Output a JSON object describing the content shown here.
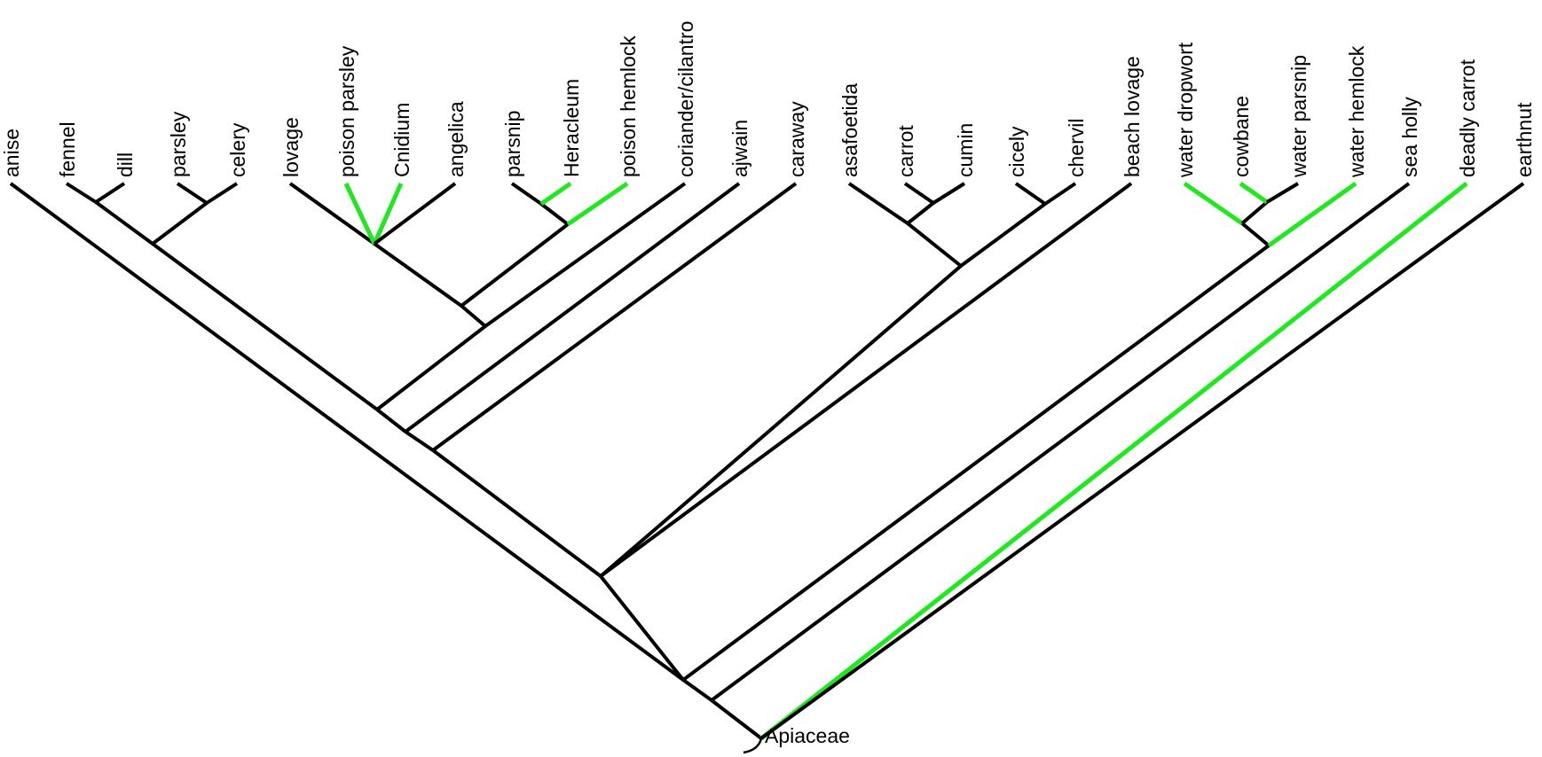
{
  "colors": {
    "branch": "#000000",
    "highlight": "#1ee81e"
  },
  "root_label": "Apiaceae",
  "tree": {
    "children": [
      {
        "children": [
          {
            "children": [
              {
                "label": "anise"
              },
              {
                "children": [
                  {
                    "children": [
                      {
                        "children": [
                          {
                            "children": [
                              {
                                "children": [
                                  {
                                    "children": [
                                      {
                                        "label": "fennel"
                                      },
                                      {
                                        "label": "dill"
                                      }
                                    ]
                                  },
                                  {
                                    "children": [
                                      {
                                        "label": "parsley"
                                      },
                                      {
                                        "label": "celery"
                                      }
                                    ]
                                  }
                                ]
                              },
                              {
                                "children": [
                                  {
                                    "children": [
                                      {
                                        "children": [
                                          {
                                            "label": "lovage"
                                          },
                                          {
                                            "label": "poison parsley",
                                            "highlight": true
                                          },
                                          {
                                            "label": "Cnidium",
                                            "highlight": true
                                          },
                                          {
                                            "label": "angelica"
                                          }
                                        ]
                                      },
                                      {
                                        "children": [
                                          {
                                            "children": [
                                              {
                                                "label": "parsnip"
                                              },
                                              {
                                                "label": "Heracleum",
                                                "highlight": true
                                              }
                                            ]
                                          },
                                          {
                                            "label": "poison hemlock",
                                            "highlight": true
                                          }
                                        ]
                                      }
                                    ]
                                  },
                                  {
                                    "label": "coriander/cilantro"
                                  }
                                ]
                              }
                            ]
                          },
                          {
                            "label": "ajwain"
                          }
                        ]
                      },
                      {
                        "label": "caraway"
                      }
                    ]
                  },
                  {
                    "children": [
                      {
                        "children": [
                          {
                            "label": "asafoetida"
                          },
                          {
                            "children": [
                              {
                                "label": "carrot"
                              },
                              {
                                "label": "cumin"
                              }
                            ]
                          }
                        ]
                      },
                      {
                        "children": [
                          {
                            "label": "cicely"
                          },
                          {
                            "label": "chervil"
                          }
                        ]
                      }
                    ]
                  },
                  {
                    "label": "beach lovage"
                  }
                ]
              },
              {
                "children": [
                  {
                    "children": [
                      {
                        "label": "water dropwort",
                        "highlight": true
                      },
                      {
                        "children": [
                          {
                            "label": "cowbane",
                            "highlight": true
                          },
                          {
                            "label": "water parsnip"
                          }
                        ]
                      }
                    ]
                  },
                  {
                    "label": "water hemlock",
                    "highlight": true
                  }
                ]
              }
            ]
          },
          {
            "label": "sea holly"
          }
        ]
      },
      {
        "label": "deadly carrot",
        "highlight": true
      },
      {
        "label": "earthnut"
      }
    ]
  }
}
